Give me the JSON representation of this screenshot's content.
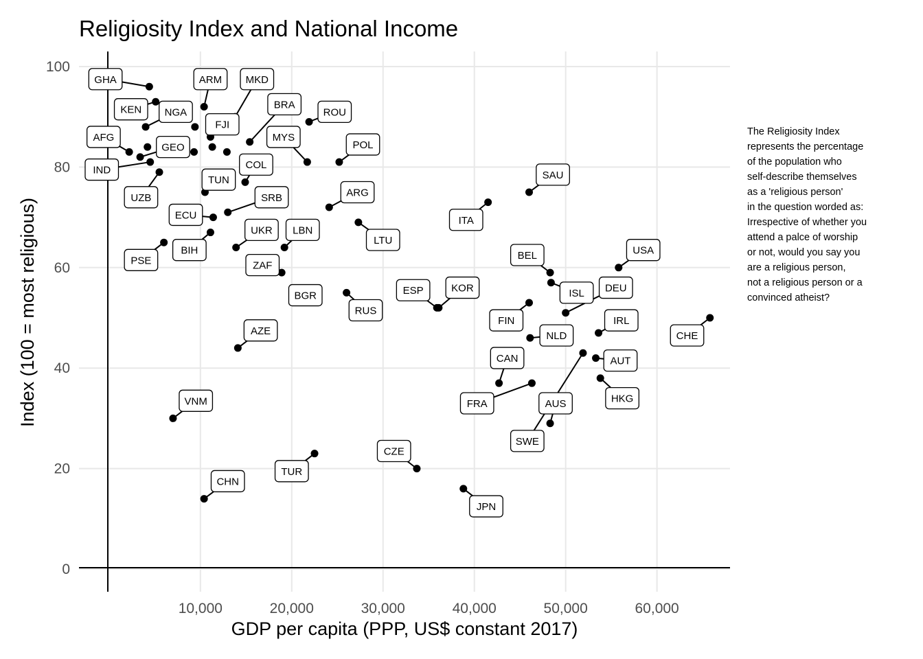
{
  "chart_data": {
    "type": "scatter",
    "title": "Religiosity Index and National Income",
    "xlabel": "GDP per capita (PPP, US$ constant 2017)",
    "ylabel": "Index (100 = most religious)",
    "xlim": [
      -3300,
      68000
    ],
    "ylim": [
      -4.5,
      103
    ],
    "xticks": [
      10000,
      20000,
      30000,
      40000,
      50000,
      60000
    ],
    "xtick_labels": [
      "10,000",
      "20,000",
      "30,000",
      "40,000",
      "50,000",
      "60,000"
    ],
    "yticks": [
      0,
      20,
      40,
      60,
      80,
      100
    ],
    "ytick_labels": [
      "0",
      "20",
      "40",
      "60",
      "80",
      "100"
    ],
    "grid": true,
    "points": [
      {
        "label": "GHA",
        "x": 4400,
        "y": 96,
        "lx": -400,
        "ly": 97.5
      },
      {
        "label": "KEN",
        "x": 5100,
        "y": 93,
        "lx": 2400,
        "ly": 91.5
      },
      {
        "label": "NGA",
        "x": 4000,
        "y": 88,
        "lx": 7300,
        "ly": 91
      },
      {
        "label": "AFG",
        "x": 2200,
        "y": 83,
        "lx": -600,
        "ly": 86
      },
      {
        "label": "GEO",
        "x": 3400,
        "y": 82,
        "lx": 7000,
        "ly": 84
      },
      {
        "label": "IND",
        "x": 4500,
        "y": 81,
        "lx": -800,
        "ly": 79.5
      },
      {
        "label": "UZB",
        "x": 5500,
        "y": 79,
        "lx": 3500,
        "ly": 74
      },
      {
        "label": "ARM",
        "x": 10400,
        "y": 92,
        "lx": 11100,
        "ly": 97.5
      },
      {
        "label": "MKD",
        "x": 13800,
        "y": 90,
        "lx": 16200,
        "ly": 97.5
      },
      {
        "label": "FJI",
        "x": 11100,
        "y": 86,
        "lx": 12400,
        "ly": 88.5
      },
      {
        "label": "BRA",
        "x": 15400,
        "y": 85,
        "lx": 19200,
        "ly": 92.5
      },
      {
        "label": "ROU",
        "x": 21900,
        "y": 89,
        "lx": 24700,
        "ly": 91
      },
      {
        "label": "MYS",
        "x": 21700,
        "y": 81,
        "lx": 19100,
        "ly": 86
      },
      {
        "label": "POL",
        "x": 25200,
        "y": 81,
        "lx": 27800,
        "ly": 84.5
      },
      {
        "label": "COL",
        "x": 14900,
        "y": 77,
        "lx": 16100,
        "ly": 80.5
      },
      {
        "label": "TUN",
        "x": 10500,
        "y": 75,
        "lx": 12000,
        "ly": 77.5
      },
      {
        "label": "SRB",
        "x": 13000,
        "y": 71,
        "lx": 17800,
        "ly": 74
      },
      {
        "label": "ARG",
        "x": 24100,
        "y": 72,
        "lx": 27200,
        "ly": 75
      },
      {
        "label": "ECU",
        "x": 11400,
        "y": 70,
        "lx": 8400,
        "ly": 70.5
      },
      {
        "label": "UKR",
        "x": 13900,
        "y": 64,
        "lx": 16700,
        "ly": 67.5
      },
      {
        "label": "LBN",
        "x": 19200,
        "y": 64,
        "lx": 21200,
        "ly": 67.5
      },
      {
        "label": "LTU",
        "x": 27300,
        "y": 69,
        "lx": 30000,
        "ly": 65.5
      },
      {
        "label": "BIH",
        "x": 11100,
        "y": 67,
        "lx": 8800,
        "ly": 63.5
      },
      {
        "label": "PSE",
        "x": 6000,
        "y": 65,
        "lx": 3500,
        "ly": 61.5
      },
      {
        "label": "ZAF",
        "x": 18900,
        "y": 59,
        "lx": 16800,
        "ly": 60.5
      },
      {
        "label": "BGR",
        "x": 22600,
        "y": 55,
        "lx": 21500,
        "ly": 54.5
      },
      {
        "label": "RUS",
        "x": 26000,
        "y": 55,
        "lx": 28100,
        "ly": 51.5
      },
      {
        "label": "AZE",
        "x": 14100,
        "y": 44,
        "lx": 16600,
        "ly": 47.5
      },
      {
        "label": "VNM",
        "x": 7000,
        "y": 30,
        "lx": 9500,
        "ly": 33.5
      },
      {
        "label": "CHN",
        "x": 10400,
        "y": 14,
        "lx": 13000,
        "ly": 17.5
      },
      {
        "label": "TUR",
        "x": 22500,
        "y": 23,
        "lx": 20000,
        "ly": 19.5
      },
      {
        "label": "CZE",
        "x": 33700,
        "y": 20,
        "lx": 31200,
        "ly": 23.5
      },
      {
        "label": "ESP",
        "x": 35900,
        "y": 52,
        "lx": 33300,
        "ly": 55.5
      },
      {
        "label": "KOR",
        "x": 36100,
        "y": 52,
        "lx": 38700,
        "ly": 56
      },
      {
        "label": "JPN",
        "x": 38800,
        "y": 16,
        "lx": 41300,
        "ly": 12.5
      },
      {
        "label": "ITA",
        "x": 41500,
        "y": 73,
        "lx": 39100,
        "ly": 69.5
      },
      {
        "label": "SAU",
        "x": 46000,
        "y": 75,
        "lx": 48600,
        "ly": 78.5
      },
      {
        "label": "BEL",
        "x": 48300,
        "y": 59,
        "lx": 45800,
        "ly": 62.5
      },
      {
        "label": "USA",
        "x": 55800,
        "y": 60,
        "lx": 58500,
        "ly": 63.5
      },
      {
        "label": "DEU",
        "x": 50000,
        "y": 51,
        "lx": 55500,
        "ly": 56
      },
      {
        "label": "ISL",
        "x": 48400,
        "y": 57,
        "lx": 51200,
        "ly": 55
      },
      {
        "label": "FIN",
        "x": 46000,
        "y": 53,
        "lx": 43500,
        "ly": 49.5
      },
      {
        "label": "IRL",
        "x": 53600,
        "y": 47,
        "lx": 56100,
        "ly": 49.5
      },
      {
        "label": "NLD",
        "x": 46100,
        "y": 46,
        "lx": 49000,
        "ly": 46.5
      },
      {
        "label": "CHE",
        "x": 65800,
        "y": 50,
        "lx": 63300,
        "ly": 46.5
      },
      {
        "label": "CAN",
        "x": 42700,
        "y": 37,
        "lx": 43600,
        "ly": 42
      },
      {
        "label": "AUT",
        "x": 53300,
        "y": 42,
        "lx": 56000,
        "ly": 41.5
      },
      {
        "label": "HKG",
        "x": 53800,
        "y": 38,
        "lx": 56200,
        "ly": 34
      },
      {
        "label": "FRA",
        "x": 46300,
        "y": 37,
        "lx": 40300,
        "ly": 33
      },
      {
        "label": "AUS",
        "x": 48300,
        "y": 29,
        "lx": 48900,
        "ly": 33
      },
      {
        "label": "SWE",
        "x": 51900,
        "y": 43,
        "lx": 45800,
        "ly": 25.5
      }
    ],
    "extra_points": [
      {
        "x": 9400,
        "y": 88
      },
      {
        "x": 9300,
        "y": 83
      },
      {
        "x": 11300,
        "y": 84
      },
      {
        "x": 12900,
        "y": 83
      },
      {
        "x": 4200,
        "y": 84
      }
    ]
  },
  "annotation": {
    "text": "The Religiosity Index\nrepresents the percentage\nof the population who\nself-describe themselves\nas a 'religious person'\nin the question worded as:\nIrrespective of whether you\nattend a palce of worship\nor not, would you say you\nare a religious person,\nnot a religious person or a\nconvinced atheist?"
  }
}
